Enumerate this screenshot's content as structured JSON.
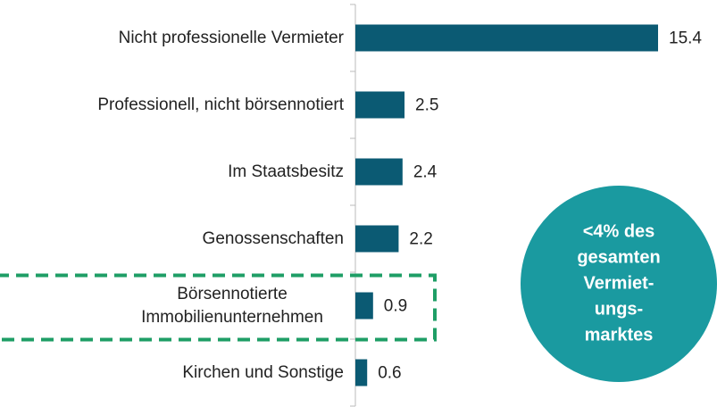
{
  "chart_data": {
    "type": "bar",
    "orientation": "horizontal",
    "categories": [
      "Nicht professionelle Vermieter",
      "Professionell, nicht börsennotiert",
      "Im Staatsbesitz",
      "Genossenschaften",
      "Börsennotierte Immobilienunternehmen",
      "Kirchen und Sonstige"
    ],
    "values": [
      15.4,
      2.5,
      2.4,
      2.2,
      0.9,
      0.6
    ],
    "color": "#0b5a73",
    "highlight": 4,
    "highlight_color": "#1e9e66",
    "annotation": {
      "lines": [
        "<4% des",
        "gesamten",
        "Vermiet-",
        "ungs-",
        "marktes"
      ],
      "color": "#1a9aa0"
    }
  }
}
